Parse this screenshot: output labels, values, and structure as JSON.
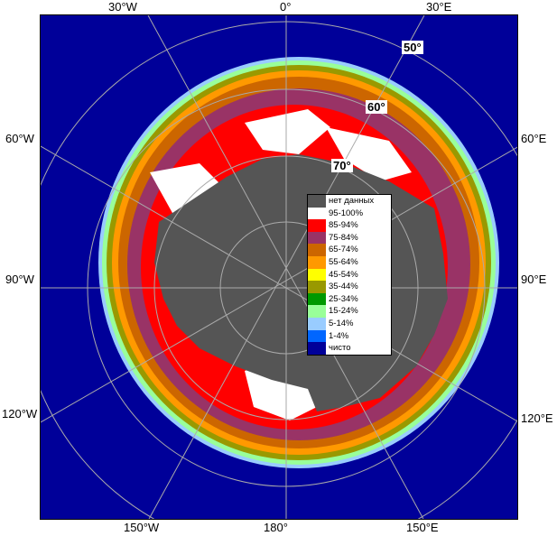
{
  "longitude_labels": {
    "top": [
      "30°W",
      "0°",
      "30°E"
    ],
    "left": [
      "60°W",
      "90°W",
      "120°W"
    ],
    "right": [
      "60°E",
      "90°E",
      "120°E"
    ],
    "bottom": [
      "150°W",
      "180°",
      "150°E"
    ]
  },
  "latitude_labels": [
    "50°",
    "60°",
    "70°"
  ],
  "legend": [
    {
      "label": "нет данных",
      "color": "#555555"
    },
    {
      "label": "95-100%",
      "color": "#ffffff"
    },
    {
      "label": "85-94%",
      "color": "#ff0000"
    },
    {
      "label": "75-84%",
      "color": "#993366"
    },
    {
      "label": "65-74%",
      "color": "#cc6600"
    },
    {
      "label": "55-64%",
      "color": "#ff9900"
    },
    {
      "label": "45-54%",
      "color": "#ffff00"
    },
    {
      "label": "35-44%",
      "color": "#999900"
    },
    {
      "label": "25-34%",
      "color": "#009900"
    },
    {
      "label": "15-24%",
      "color": "#99ff99"
    },
    {
      "label": "5-14%",
      "color": "#99ccff"
    },
    {
      "label": "1-4%",
      "color": "#0066ff"
    },
    {
      "label": "чисто",
      "color": "#000099"
    }
  ]
}
